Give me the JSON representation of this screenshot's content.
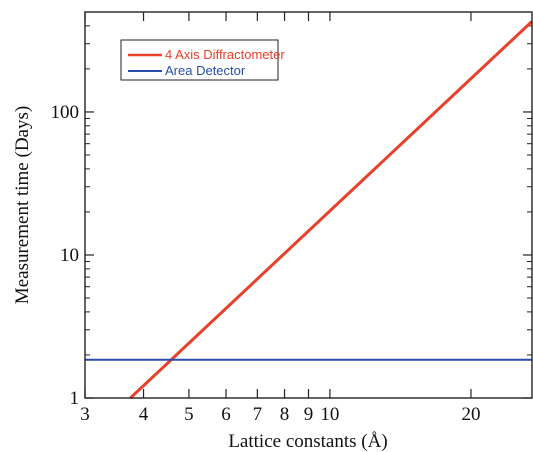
{
  "chart_data": {
    "type": "line",
    "xlabel": "Lattice constants (Å)",
    "ylabel": "Measurement time (Days)",
    "x_scale": "log",
    "y_scale": "log",
    "xlim": [
      3,
      27
    ],
    "ylim": [
      1,
      500
    ],
    "x_ticks": [
      3,
      4,
      5,
      6,
      7,
      8,
      9,
      10,
      20
    ],
    "x_tick_labels": [
      "3",
      "4",
      "5",
      "6",
      "7",
      "8",
      "9",
      "10",
      "20"
    ],
    "y_ticks": [
      1,
      10,
      100
    ],
    "y_tick_labels": [
      "1",
      "10",
      "100"
    ],
    "grid": false,
    "legend_placement": "top-left",
    "series": [
      {
        "name": "4 Axis Diffractometer",
        "color": "#e8402a",
        "x": [
          3.75,
          27
        ],
        "y": [
          1,
          430
        ]
      },
      {
        "name": "Area Detector",
        "color": "#2a4dab",
        "x": [
          3,
          27
        ],
        "y": [
          1.85,
          1.85
        ]
      }
    ]
  }
}
